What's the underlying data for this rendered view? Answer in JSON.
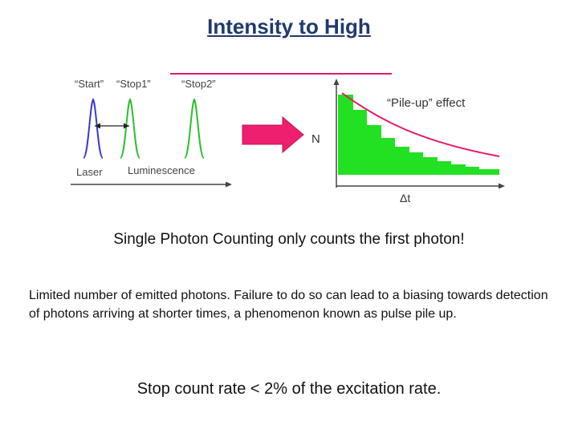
{
  "title": "Intensity to High",
  "figure": {
    "labels": {
      "start": "“Start”",
      "stop1": "“Stop1”",
      "stop2": "“Stop2”",
      "laser": "Laser",
      "luminescence": "Luminescence",
      "pileup": "“Pile-up” effect",
      "n_axis": "N",
      "dt_axis": "Δt"
    },
    "colors": {
      "laser": "#3b3bd6",
      "luminescence": "#2fbf2f",
      "arrow": "#ee1f6f",
      "histogram": "#22e022",
      "curve": "#e8186a"
    }
  },
  "text": {
    "line1": "Single Photon Counting only counts the first photon!",
    "para": "Limited number of emitted photons. Failure to do so can lead to a biasing towards detection of photons arriving at shorter times, a phenomenon known as pulse pile up.",
    "line2": "Stop count rate < 2% of the excitation rate."
  }
}
